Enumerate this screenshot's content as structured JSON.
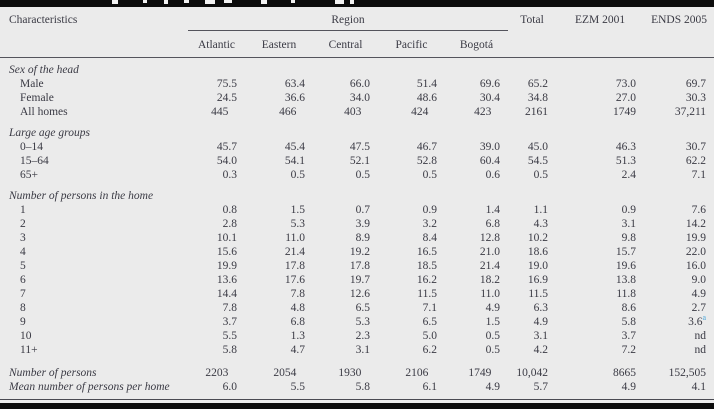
{
  "table": {
    "header": {
      "characteristics": "Characteristics",
      "region_group": "Region",
      "region_columns": [
        "Atlantic",
        "Eastern",
        "Central",
        "Pacific",
        "Bogotá"
      ],
      "other_columns": [
        "Total",
        "EZM 2001",
        "ENDS 2005"
      ]
    },
    "sections": [
      {
        "label": "Sex of the head",
        "rows": [
          {
            "label": "Male",
            "values": [
              "75.5",
              "63.4",
              "66.0",
              "51.4",
              "69.6",
              "65.2",
              "73.0",
              "69.7"
            ]
          },
          {
            "label": "Female",
            "values": [
              "24.5",
              "36.6",
              "34.0",
              "48.6",
              "30.4",
              "34.8",
              "27.0",
              "30.3"
            ]
          },
          {
            "label": "All homes",
            "values": [
              "445",
              "466",
              "403",
              "424",
              "423",
              "2161",
              "1749",
              "37,211"
            ]
          }
        ]
      },
      {
        "label": "Large age groups",
        "rows": [
          {
            "label": "0–14",
            "values": [
              "45.7",
              "45.4",
              "47.5",
              "46.7",
              "39.0",
              "45.0",
              "46.3",
              "30.7"
            ]
          },
          {
            "label": "15–64",
            "values": [
              "54.0",
              "54.1",
              "52.1",
              "52.8",
              "60.4",
              "54.5",
              "51.3",
              "62.2"
            ]
          },
          {
            "label": "65+",
            "values": [
              "0.3",
              "0.5",
              "0.5",
              "0.5",
              "0.6",
              "0.5",
              "2.4",
              "7.1"
            ]
          }
        ]
      },
      {
        "label": "Number of persons in the home",
        "rows": [
          {
            "label": "1",
            "values": [
              "0.8",
              "1.5",
              "0.7",
              "0.9",
              "1.4",
              "1.1",
              "0.9",
              "7.6"
            ]
          },
          {
            "label": "2",
            "values": [
              "2.8",
              "5.3",
              "3.9",
              "3.2",
              "6.8",
              "4.3",
              "3.1",
              "14.2"
            ]
          },
          {
            "label": "3",
            "values": [
              "10.1",
              "11.0",
              "8.9",
              "8.4",
              "12.8",
              "10.2",
              "9.8",
              "19.9"
            ]
          },
          {
            "label": "4",
            "values": [
              "15.6",
              "21.4",
              "19.2",
              "16.5",
              "21.0",
              "18.6",
              "15.7",
              "22.0"
            ]
          },
          {
            "label": "5",
            "values": [
              "19.9",
              "17.8",
              "17.8",
              "18.5",
              "21.4",
              "19.0",
              "19.6",
              "16.0"
            ]
          },
          {
            "label": "6",
            "values": [
              "13.6",
              "17.6",
              "19.7",
              "16.2",
              "18.2",
              "16.9",
              "13.8",
              "9.0"
            ]
          },
          {
            "label": "7",
            "values": [
              "14.4",
              "7.8",
              "12.6",
              "11.5",
              "11.0",
              "11.5",
              "11.8",
              "4.9"
            ]
          },
          {
            "label": "8",
            "values": [
              "7.8",
              "4.8",
              "6.5",
              "7.1",
              "4.9",
              "6.3",
              "8.6",
              "2.7"
            ]
          },
          {
            "label": "9",
            "values": [
              "3.7",
              "6.8",
              "5.3",
              "6.5",
              "1.5",
              "4.9",
              "5.8",
              "3.6"
            ],
            "sup": "a"
          },
          {
            "label": "10",
            "values": [
              "5.5",
              "1.3",
              "2.3",
              "5.0",
              "0.5",
              "3.1",
              "3.7",
              "nd"
            ]
          },
          {
            "label": "11+",
            "values": [
              "5.8",
              "4.7",
              "3.1",
              "6.2",
              "0.5",
              "4.2",
              "7.2",
              "nd"
            ]
          }
        ]
      }
    ],
    "summary_rows": [
      {
        "label": "Number of persons",
        "values": [
          "2203",
          "2054",
          "1930",
          "2106",
          "1749",
          "10,042",
          "8665",
          "152,505"
        ]
      },
      {
        "label": "Mean number of persons per home",
        "values": [
          "6.0",
          "5.5",
          "5.8",
          "6.1",
          "4.9",
          "5.7",
          "4.9",
          "4.1"
        ]
      }
    ],
    "colors": {
      "background": "#ebebeb",
      "text": "#3a3a44",
      "rule": "#54545c",
      "bar": "#0c0c0c",
      "note_superscript": "#4da6d9"
    }
  }
}
